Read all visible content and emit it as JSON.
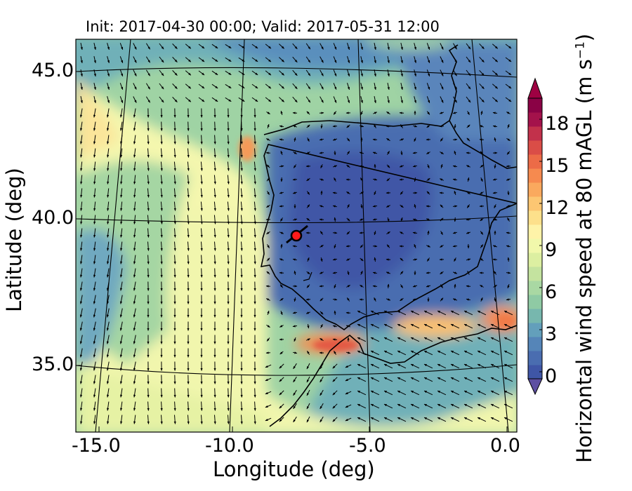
{
  "title": "Init: 2017-04-30 00:00; Valid: 2017-05-31 12:00",
  "xlabel": "Longitude (deg)",
  "ylabel": "Latitude (deg)",
  "colorbar": {
    "label_main": "Horizontal wind speed at 80 mAGL (m s",
    "label_exp": "−1",
    "label_tail": ")",
    "ticks": [
      "0",
      "3",
      "6",
      "9",
      "12",
      "15",
      "18"
    ],
    "tick_values": [
      0,
      3,
      6,
      9,
      12,
      15,
      18
    ],
    "range": [
      0,
      20
    ],
    "step": 1,
    "extend": "both",
    "colormap": "Spectral_r",
    "colors": [
      "#3f56a6",
      "#4a6db0",
      "#5585b8",
      "#639fbb",
      "#77b7ae",
      "#8fcaa4",
      "#a9d8a3",
      "#c4e39f",
      "#dcefa1",
      "#f1f8ab",
      "#fef3a8",
      "#fde08b",
      "#fcc672",
      "#faa95e",
      "#f68a4f",
      "#ec6b47",
      "#da4d47",
      "#c2314b",
      "#a4124b",
      "#8a0245"
    ],
    "under_color": "#5e4fa2",
    "over_color": "#9e0142"
  },
  "xticks": [
    "-15.0",
    "-10.0",
    "-5.0",
    "0.0"
  ],
  "yticks": [
    "45.0",
    "40.0",
    "35.0"
  ],
  "marker": {
    "lon": -7.6,
    "lat": 39.3,
    "color": "#ff1a1a"
  }
}
